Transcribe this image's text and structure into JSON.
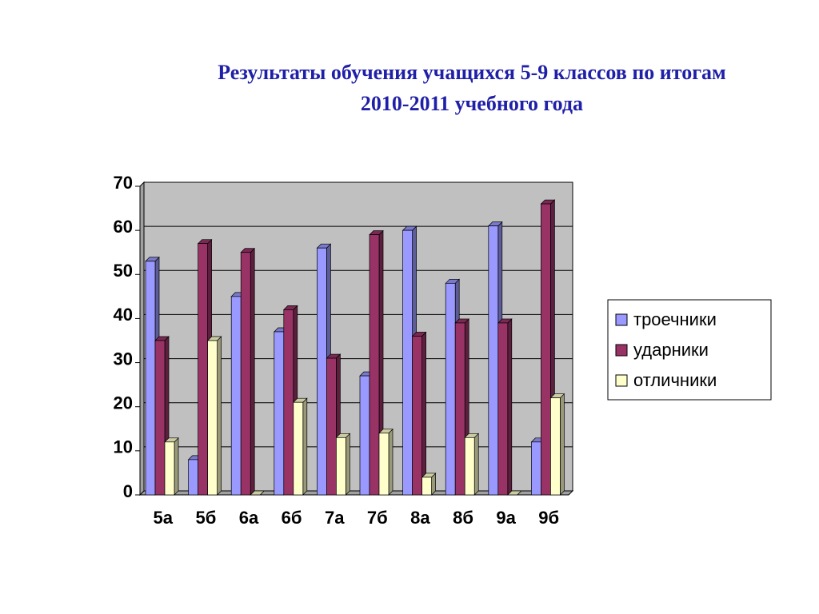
{
  "chart_data": {
    "type": "bar",
    "title": [
      "Результаты обучения учащихся 5-9 классов по итогам",
      "2010-2011 учебного года"
    ],
    "categories": [
      "5а",
      "5б",
      "6а",
      "6б",
      "7а",
      "7б",
      "8а",
      "8б",
      "9а",
      "9б"
    ],
    "series": [
      {
        "name": "троечники",
        "color": "#9999ff",
        "values": [
          53,
          8,
          45,
          37,
          56,
          27,
          60,
          48,
          61,
          12
        ]
      },
      {
        "name": "ударники",
        "color": "#993366",
        "values": [
          35,
          57,
          55,
          42,
          31,
          59,
          36,
          39,
          39,
          66
        ]
      },
      {
        "name": "отличники",
        "color": "#ffffcc",
        "values": [
          12,
          35,
          0,
          21,
          13,
          14,
          4,
          13,
          0,
          22
        ]
      }
    ],
    "ylim": [
      0,
      70
    ],
    "yticks": [
      0,
      10,
      20,
      30,
      40,
      50,
      60,
      70
    ],
    "grid": true,
    "legend": "right"
  }
}
